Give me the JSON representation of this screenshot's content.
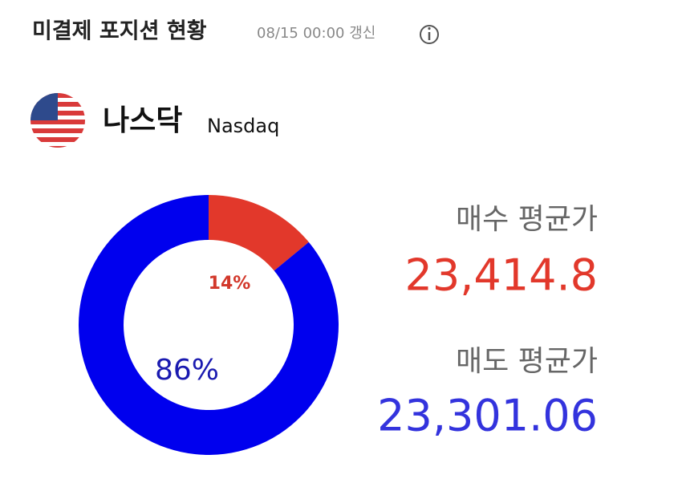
{
  "header": {
    "title": "미결제 포지션 현황",
    "updated": "08/15 00:00 갱신"
  },
  "market": {
    "name": "나스닥",
    "name_en": "Nasdaq"
  },
  "chart_data": {
    "type": "pie",
    "values": [
      14,
      86
    ],
    "value_labels": [
      "14%",
      "86%"
    ],
    "colors": [
      "#e2382b",
      "#0000ee"
    ],
    "label_colors": [
      "#d2382b",
      "#1a1ab0"
    ]
  },
  "prices": {
    "buy_label": "매수 평균가",
    "buy": "23,414.8",
    "sell_label": "매도 평균가",
    "sell": "23,301.06"
  }
}
